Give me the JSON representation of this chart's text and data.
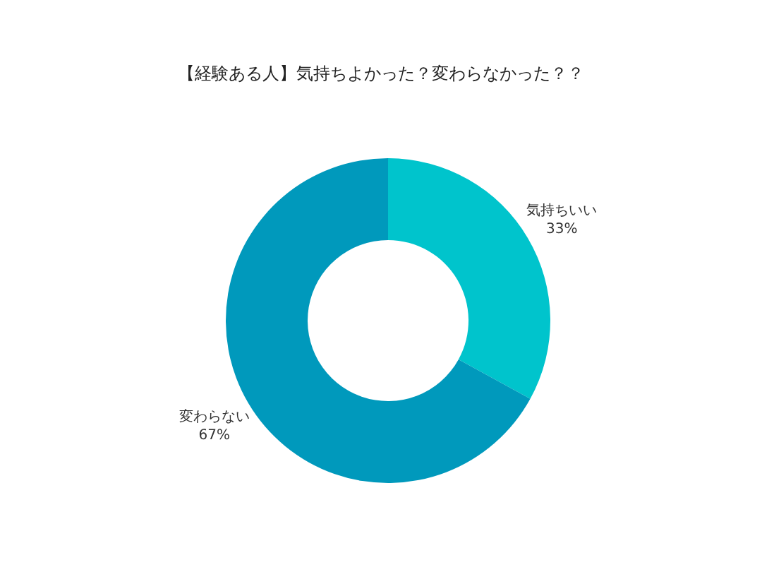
{
  "chart_data": {
    "type": "donut",
    "title": "【経験ある人】気持ちよかった？変わらなかった？？",
    "categories": [
      "気持ちいい",
      "変わらない"
    ],
    "values": [
      33,
      67
    ],
    "value_labels": [
      "33%",
      "67%"
    ],
    "colors": [
      "#00c4cc",
      "#0099bc"
    ]
  }
}
